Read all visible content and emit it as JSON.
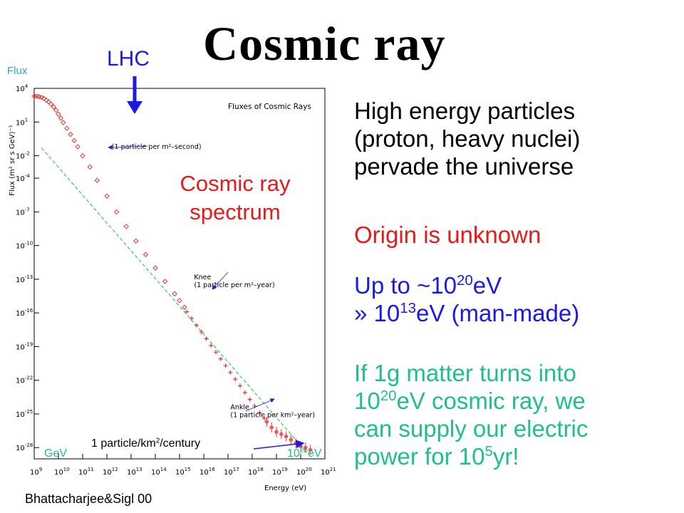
{
  "slide": {
    "title": "Cosmic ray",
    "lhc_label": "LHC",
    "flux_label": "Flux",
    "gev_label": "GeV",
    "e20_base": "10",
    "e20_exp": "20",
    "e20_unit": "eV",
    "century": {
      "a": "1 particle/km",
      "sup": "2",
      "b": "/century"
    },
    "spectrum_label": "Cosmic ray spectrum",
    "credit": "Bhattacharjee&Sigl  00",
    "right_text": {
      "intro": [
        "High energy particles",
        "(proton, heavy nuclei)",
        "pervade the universe"
      ],
      "origin": "Origin is unknown",
      "energy": {
        "l1_a": "Up to ~10",
        "l1_sup": "20",
        "l1_b": "eV",
        "l2_a": "» 10",
        "l2_sup": "13",
        "l2_b": "eV (man-made)"
      },
      "matter": {
        "l1": "If 1g matter turns into",
        "l2_a": "10",
        "l2_sup": "20",
        "l2_b": "eV cosmic ray, we",
        "l3": "can supply our electric",
        "l4_a": "power for 10",
        "l4_sup": "5",
        "l4_b": "yr!"
      }
    },
    "colors": {
      "red": "#e61a1a",
      "blue": "#1a1ae6",
      "green": "#1fbf8a",
      "plot_red": "#e83030",
      "plot_green": "#33cc66"
    }
  },
  "chart_data": {
    "type": "scatter",
    "title": "Fluxes of Cosmic Rays",
    "xlabel": "Energy (eV)",
    "ylabel": "Flux (m² sr s GeV)⁻¹",
    "x_scale": "log",
    "y_scale": "log",
    "xlim": [
      1000000000.0,
      1e+21
    ],
    "ylim": [
      1e-29,
      10000.0
    ],
    "x_tick_exponents": [
      9,
      10,
      11,
      12,
      13,
      14,
      15,
      16,
      17,
      18,
      19,
      20,
      21
    ],
    "y_tick_exponents": [
      4,
      1,
      -2,
      -4,
      -7,
      -10,
      -13,
      -16,
      -19,
      -22,
      -25,
      -28
    ],
    "y_tick_text": [
      "10",
      "10",
      "10",
      "10",
      "10",
      "10",
      "10",
      "10",
      "10",
      "10",
      "10",
      "10"
    ],
    "series": [
      {
        "marker": "diamond",
        "x_log": [
          9.0,
          9.1,
          9.2,
          9.3,
          9.4,
          9.5,
          9.6,
          9.7,
          9.8,
          9.9,
          10.0,
          10.1,
          10.2,
          10.35,
          10.5,
          10.65,
          10.8,
          11.0,
          11.3,
          11.6,
          12.0,
          12.4,
          12.8,
          13.2,
          13.6,
          14.0,
          14.4,
          14.8,
          15.0,
          15.2
        ],
        "y_log": [
          3.3,
          3.3,
          3.25,
          3.2,
          3.1,
          2.95,
          2.8,
          2.6,
          2.35,
          2.05,
          1.7,
          1.35,
          0.95,
          0.45,
          -0.1,
          -0.65,
          -1.2,
          -2.0,
          -3.0,
          -4.2,
          -5.6,
          -7.0,
          -8.3,
          -9.6,
          -10.8,
          -12.0,
          -13.2,
          -14.3,
          -14.9,
          -15.5
        ]
      },
      {
        "marker": "cross",
        "x_log": [
          15.3,
          15.5,
          15.7,
          15.9,
          16.1,
          16.3,
          16.5,
          16.7,
          16.9,
          17.1,
          17.3,
          17.5,
          17.7,
          17.9,
          18.1,
          18.3,
          18.5
        ],
        "y_log": [
          -15.9,
          -16.5,
          -17.1,
          -17.7,
          -18.3,
          -18.9,
          -19.5,
          -20.1,
          -20.7,
          -21.3,
          -21.9,
          -22.5,
          -23.1,
          -23.7,
          -24.3,
          -24.9,
          -25.4
        ]
      },
      {
        "marker": "errorbar",
        "x_log": [
          18.6,
          18.8,
          19.0,
          19.2,
          19.4,
          19.6,
          19.8,
          20.0,
          20.2,
          20.4
        ],
        "y_log": [
          -25.7,
          -26.2,
          -26.6,
          -26.8,
          -27.0,
          -27.3,
          -27.6,
          -27.9,
          -28.0,
          -28.2
        ]
      }
    ],
    "reference_line": {
      "x_log": [
        9.3,
        20.2
      ],
      "y_log": [
        -1.3,
        -28.3
      ]
    },
    "annotations": [
      {
        "text": "(1 particle per m²–second)",
        "x_log": 12.2,
        "y_log": -1.4
      },
      {
        "text": "Knee",
        "x_log": 15.6,
        "y_log": -13.0
      },
      {
        "text": "(1 particle per m²–year)",
        "x_log": 15.6,
        "y_log": -13.7
      },
      {
        "text": "Ankle",
        "x_log": 17.1,
        "y_log": -24.6
      },
      {
        "text": "(1 particle per km²–year)",
        "x_log": 17.1,
        "y_log": -25.3
      }
    ]
  }
}
